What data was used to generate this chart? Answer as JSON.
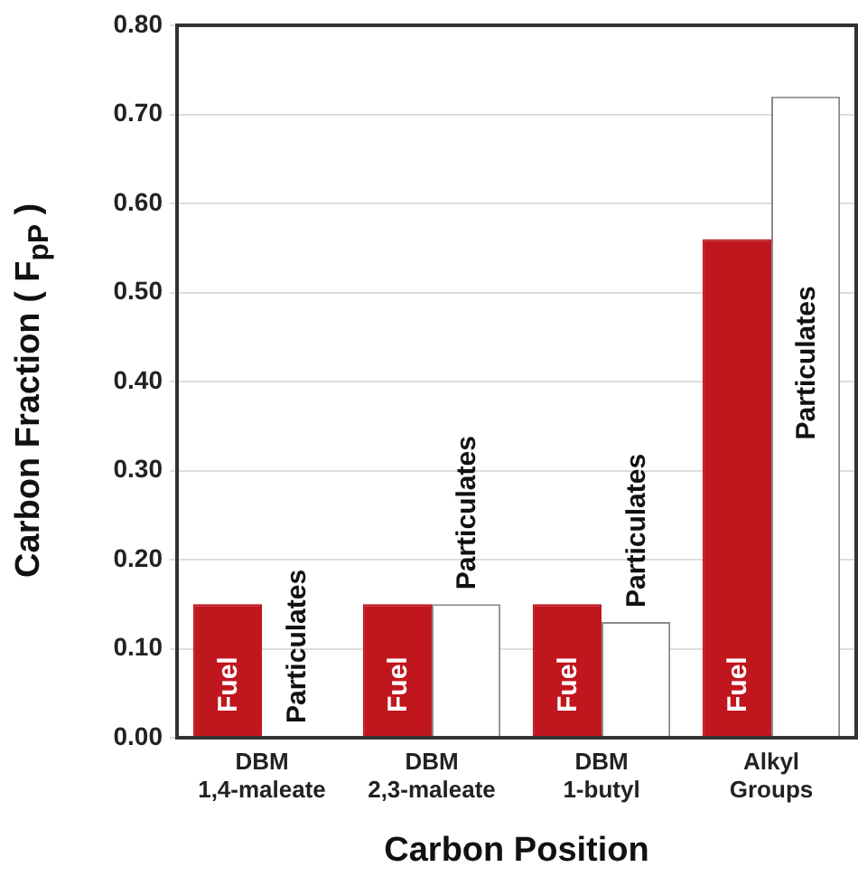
{
  "chart_data": {
    "type": "bar",
    "xlabel": "Carbon Position",
    "ylabel": "Carbon Fraction ( F$_{pP}$ )",
    "categories": [
      "DBM\n1,4-maleate",
      "DBM\n2,3-maleate",
      "DBM\n1-butyl",
      "Alkyl\nGroups"
    ],
    "series": [
      {
        "name": "Fuel",
        "color": "#c0161e",
        "values": [
          0.15,
          0.15,
          0.15,
          0.56
        ]
      },
      {
        "name": "Particulates",
        "color": "#ffffff",
        "values": [
          0.0,
          0.15,
          0.13,
          0.72
        ]
      }
    ],
    "ylim": [
      0,
      0.8
    ],
    "yticks": [
      {
        "value": 0,
        "label": "0.00"
      },
      {
        "value": 0.1,
        "label": "0.10"
      },
      {
        "value": 0.2,
        "label": "0.20"
      },
      {
        "value": 0.3,
        "label": "0.30"
      },
      {
        "value": 0.4,
        "label": "0.40"
      },
      {
        "value": 0.5,
        "label": "0.50"
      },
      {
        "value": 0.6,
        "label": "0.60"
      },
      {
        "value": 0.7,
        "label": "0.70"
      },
      {
        "value": 0.8,
        "label": "0.80"
      }
    ],
    "grid": "y",
    "legend": false
  }
}
